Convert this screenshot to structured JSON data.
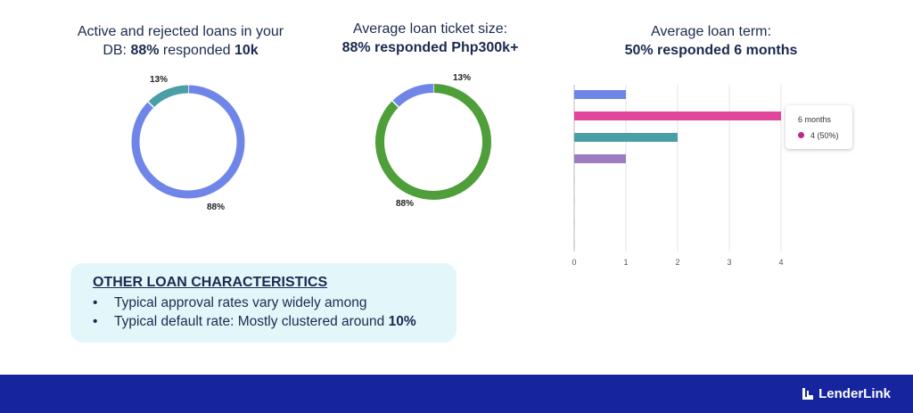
{
  "slide": {
    "donut1_title": {
      "line1": "Active and rejected loans in your",
      "line2_pre": "DB: ",
      "line2_bold1": "88%",
      "line2_mid": " responded ",
      "line2_bold2": "10k"
    },
    "donut2_title": {
      "line1": "Average loan ticket size:",
      "line2_bold": "88% responded Php300k+"
    },
    "bar_title": {
      "line1": "Average loan term:",
      "line2_bold1": "50%",
      "line2_mid": " responded ",
      "line2_bold2": "6 months"
    },
    "other": {
      "heading": "OTHER LOAN CHARACTERISTICS",
      "bullet_char": "•",
      "item1": "Typical approval rates vary widely among",
      "item2_pre": "Typical default rate: Mostly clustered around ",
      "item2_bold": "10%"
    },
    "brand": "LenderLink"
  },
  "chart_data": [
    {
      "type": "pie",
      "title": "Active and rejected loans in your DB: 88% responded 10k",
      "slices": [
        {
          "label": "88%",
          "value": 87.5,
          "color": "#6f86e8"
        },
        {
          "label": "13%",
          "value": 12.5,
          "color": "#4a9ea6"
        }
      ]
    },
    {
      "type": "pie",
      "title": "Average loan ticket size: 88% responded Php300k+",
      "slices": [
        {
          "label": "88%",
          "value": 87.5,
          "color": "#4e9e39"
        },
        {
          "label": "13%",
          "value": 12.5,
          "color": "#6f86e8"
        }
      ]
    },
    {
      "type": "bar",
      "orientation": "horizontal",
      "title": "Average loan term: 50% responded 6 months",
      "values": [
        1,
        4,
        2,
        1,
        0,
        0,
        0,
        0
      ],
      "colors": [
        "#6f86e8",
        "#e0479a",
        "#4a9ea6",
        "#9d7cc4",
        "#d8d0c0",
        "#d8d0c0",
        "#d8d0c0",
        "#d8d0c0"
      ],
      "xlim": [
        0,
        4
      ],
      "xticks": [
        0,
        1,
        2,
        3,
        4
      ],
      "tooltip": {
        "title": "6 months",
        "value_text": "4 (50%)",
        "color": "#c0288a"
      }
    }
  ]
}
